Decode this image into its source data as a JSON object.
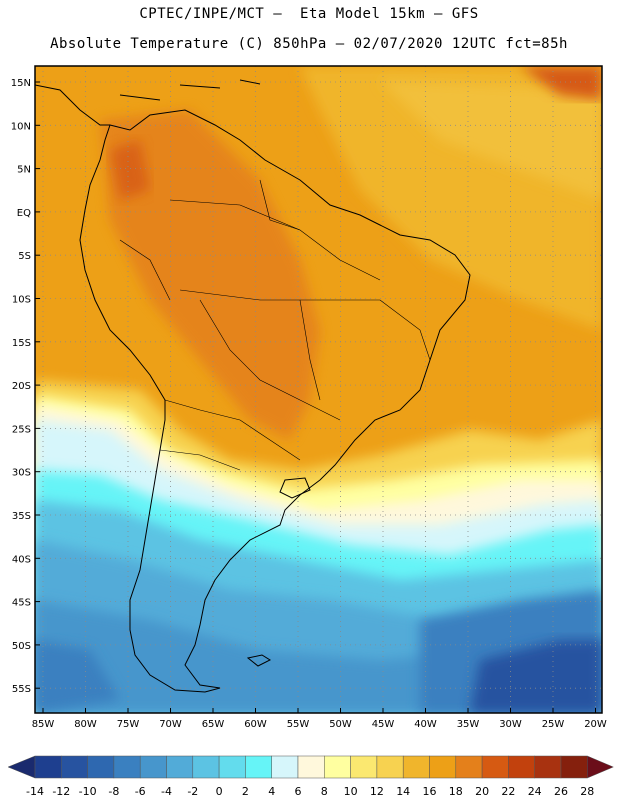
{
  "header": {
    "line1": "CPTEC/INPE/MCT –  Eta Model 15km – GFS",
    "line2": "Absolute Temperature (C) 850hPa – 02/07/2020 12UTC fct=85h"
  },
  "map": {
    "lat_labels": [
      "15N",
      "10N",
      "5N",
      "EQ",
      "5S",
      "10S",
      "15S",
      "20S",
      "25S",
      "30S",
      "35S",
      "40S",
      "45S",
      "50S",
      "55S"
    ],
    "lon_labels": [
      "85W",
      "80W",
      "75W",
      "70W",
      "65W",
      "60W",
      "55W",
      "50W",
      "45W",
      "40W",
      "35W",
      "30W",
      "25W",
      "20W"
    ],
    "region_names": [
      "South America"
    ]
  },
  "colorbar": {
    "tick_labels": [
      "-14",
      "-12",
      "-10",
      "-8",
      "-6",
      "-4",
      "-2",
      "0",
      "2",
      "4",
      "6",
      "8",
      "10",
      "12",
      "14",
      "16",
      "18",
      "20",
      "22",
      "24",
      "26",
      "28"
    ],
    "colors": [
      "#1e3f8f",
      "#2753a0",
      "#2e68b0",
      "#3a80c0",
      "#4796cc",
      "#52abd8",
      "#5cc3e3",
      "#63dced",
      "#66f4f7",
      "#d6f6fb",
      "#fff8dc",
      "#ffffa0",
      "#fbe870",
      "#f7d250",
      "#f0b52c",
      "#eda017",
      "#e4801b",
      "#d65a12",
      "#c2410d",
      "#a83210",
      "#85200d"
    ],
    "over_color": "#6b0e1a",
    "under_color": "#1a2a6e"
  }
}
